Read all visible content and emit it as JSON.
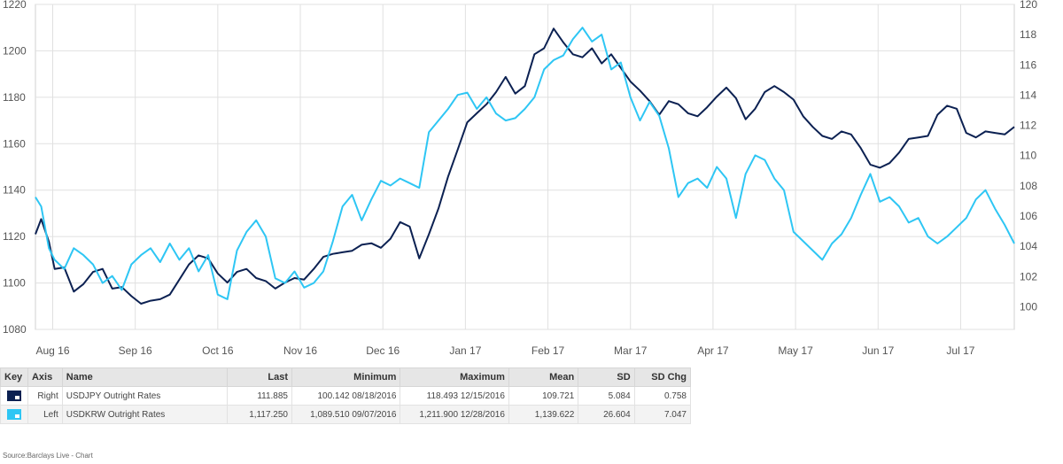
{
  "chart_data": {
    "type": "line",
    "title": "",
    "left_axis": {
      "min": 1080,
      "max": 1220,
      "ticks": [
        1080,
        1100,
        1120,
        1140,
        1160,
        1180,
        1200,
        1220
      ]
    },
    "right_axis": {
      "min": 98.5,
      "max": 120,
      "ticks": [
        100,
        102,
        104,
        106,
        108,
        110,
        112,
        114,
        116,
        118,
        120
      ]
    },
    "x_labels": [
      "Aug 16",
      "Sep 16",
      "Oct 16",
      "Nov 16",
      "Dec 16",
      "Jan 17",
      "Feb 17",
      "Mar 17",
      "Apr 17",
      "May 17",
      "Jun 17",
      "Jul 17"
    ],
    "x_range": [
      0,
      51
    ],
    "grid": true,
    "series": [
      {
        "name": "USDJPY Outright Rates",
        "axis": "right",
        "color": "#0c2152",
        "points": [
          [
            0,
            104.8
          ],
          [
            0.3,
            105.8
          ],
          [
            0.7,
            104.3
          ],
          [
            1,
            102.5
          ],
          [
            1.5,
            102.6
          ],
          [
            2,
            101
          ],
          [
            2.5,
            101.5
          ],
          [
            3,
            102.3
          ],
          [
            3.5,
            102.5
          ],
          [
            4,
            101.2
          ],
          [
            4.5,
            101.3
          ],
          [
            5,
            100.7
          ],
          [
            5.5,
            100.2
          ],
          [
            6,
            100.4
          ],
          [
            6.5,
            100.5
          ],
          [
            7,
            100.8
          ],
          [
            7.5,
            101.8
          ],
          [
            8,
            102.8
          ],
          [
            8.5,
            103.4
          ],
          [
            9,
            103.2
          ],
          [
            9.5,
            102.2
          ],
          [
            10,
            101.6
          ],
          [
            10.5,
            102.3
          ],
          [
            11,
            102.5
          ],
          [
            11.5,
            101.9
          ],
          [
            12,
            101.7
          ],
          [
            12.5,
            101.2
          ],
          [
            13,
            101.6
          ],
          [
            13.5,
            101.9
          ],
          [
            14,
            101.8
          ],
          [
            14.5,
            102.5
          ],
          [
            15,
            103.3
          ],
          [
            15.5,
            103.5
          ],
          [
            16,
            103.6
          ],
          [
            16.5,
            103.7
          ],
          [
            17,
            104.1
          ],
          [
            17.5,
            104.2
          ],
          [
            18,
            103.9
          ],
          [
            18.5,
            104.5
          ],
          [
            19,
            105.6
          ],
          [
            19.5,
            105.3
          ],
          [
            20,
            103.2
          ],
          [
            20.5,
            104.8
          ],
          [
            21,
            106.5
          ],
          [
            21.5,
            108.6
          ],
          [
            22,
            110.4
          ],
          [
            22.5,
            112.2
          ],
          [
            23,
            112.8
          ],
          [
            23.5,
            113.4
          ],
          [
            24,
            114.2
          ],
          [
            24.5,
            115.2
          ],
          [
            25,
            114.1
          ],
          [
            25.5,
            114.6
          ],
          [
            26,
            116.7
          ],
          [
            26.5,
            117.1
          ],
          [
            27,
            118.4
          ],
          [
            27.5,
            117.5
          ],
          [
            28,
            116.7
          ],
          [
            28.5,
            116.5
          ],
          [
            29,
            117.1
          ],
          [
            29.5,
            116.1
          ],
          [
            30,
            116.7
          ],
          [
            30.5,
            115.8
          ],
          [
            31,
            114.9
          ],
          [
            31.5,
            114.3
          ],
          [
            32,
            113.6
          ],
          [
            32.5,
            112.7
          ],
          [
            33,
            113.6
          ],
          [
            33.5,
            113.4
          ],
          [
            34,
            112.8
          ],
          [
            34.5,
            112.6
          ],
          [
            35,
            113.2
          ],
          [
            35.5,
            113.9
          ],
          [
            36,
            114.5
          ],
          [
            36.5,
            113.8
          ],
          [
            37,
            112.4
          ],
          [
            37.5,
            113.1
          ],
          [
            38,
            114.2
          ],
          [
            38.5,
            114.6
          ],
          [
            39,
            114.2
          ],
          [
            39.5,
            113.7
          ],
          [
            40,
            112.6
          ],
          [
            40.5,
            111.9
          ],
          [
            41,
            111.3
          ],
          [
            41.5,
            111.1
          ],
          [
            42,
            111.6
          ],
          [
            42.5,
            111.4
          ],
          [
            43,
            110.5
          ],
          [
            43.5,
            109.4
          ],
          [
            44,
            109.2
          ],
          [
            44.5,
            109.5
          ],
          [
            45,
            110.2
          ],
          [
            45.5,
            111.1
          ],
          [
            46,
            111.2
          ],
          [
            46.5,
            111.3
          ],
          [
            47,
            112.7
          ],
          [
            47.5,
            113.3
          ],
          [
            48,
            113.1
          ],
          [
            48.5,
            111.5
          ],
          [
            49,
            111.2
          ],
          [
            49.5,
            111.6
          ],
          [
            50,
            111.5
          ],
          [
            50.5,
            111.4
          ],
          [
            51,
            111.9
          ]
        ]
      },
      {
        "name": "USDKRW Outright Rates",
        "axis": "left",
        "color": "#2ec6f4",
        "points": [
          [
            0,
            1137
          ],
          [
            0.3,
            1133
          ],
          [
            0.7,
            1115
          ],
          [
            1,
            1110
          ],
          [
            1.5,
            1106
          ],
          [
            2,
            1115
          ],
          [
            2.5,
            1112
          ],
          [
            3,
            1108
          ],
          [
            3.5,
            1100
          ],
          [
            4,
            1103
          ],
          [
            4.5,
            1097
          ],
          [
            5,
            1108
          ],
          [
            5.5,
            1112
          ],
          [
            6,
            1115
          ],
          [
            6.5,
            1109
          ],
          [
            7,
            1117
          ],
          [
            7.5,
            1110
          ],
          [
            8,
            1115
          ],
          [
            8.5,
            1105
          ],
          [
            9,
            1112
          ],
          [
            9.5,
            1095
          ],
          [
            10,
            1093
          ],
          [
            10.5,
            1114
          ],
          [
            11,
            1122
          ],
          [
            11.5,
            1127
          ],
          [
            12,
            1120
          ],
          [
            12.5,
            1102
          ],
          [
            13,
            1100
          ],
          [
            13.5,
            1105
          ],
          [
            14,
            1098
          ],
          [
            14.5,
            1100
          ],
          [
            15,
            1105
          ],
          [
            15.5,
            1118
          ],
          [
            16,
            1133
          ],
          [
            16.5,
            1138
          ],
          [
            17,
            1127
          ],
          [
            17.5,
            1136
          ],
          [
            18,
            1144
          ],
          [
            18.5,
            1142
          ],
          [
            19,
            1145
          ],
          [
            19.5,
            1143
          ],
          [
            20,
            1141
          ],
          [
            20.5,
            1165
          ],
          [
            21,
            1170
          ],
          [
            21.5,
            1175
          ],
          [
            22,
            1181
          ],
          [
            22.5,
            1182
          ],
          [
            23,
            1175
          ],
          [
            23.5,
            1180
          ],
          [
            24,
            1173
          ],
          [
            24.5,
            1170
          ],
          [
            25,
            1171
          ],
          [
            25.5,
            1175
          ],
          [
            26,
            1180
          ],
          [
            26.5,
            1192
          ],
          [
            27,
            1196
          ],
          [
            27.5,
            1198
          ],
          [
            28,
            1205
          ],
          [
            28.5,
            1210
          ],
          [
            29,
            1204
          ],
          [
            29.5,
            1207
          ],
          [
            30,
            1192
          ],
          [
            30.5,
            1195
          ],
          [
            31,
            1180
          ],
          [
            31.5,
            1170
          ],
          [
            32,
            1178
          ],
          [
            32.5,
            1172
          ],
          [
            33,
            1158
          ],
          [
            33.5,
            1137
          ],
          [
            34,
            1143
          ],
          [
            34.5,
            1145
          ],
          [
            35,
            1141
          ],
          [
            35.5,
            1150
          ],
          [
            36,
            1145
          ],
          [
            36.5,
            1128
          ],
          [
            37,
            1147
          ],
          [
            37.5,
            1155
          ],
          [
            38,
            1153
          ],
          [
            38.5,
            1145
          ],
          [
            39,
            1140
          ],
          [
            39.5,
            1122
          ],
          [
            40,
            1118
          ],
          [
            40.5,
            1114
          ],
          [
            41,
            1110
          ],
          [
            41.5,
            1117
          ],
          [
            42,
            1121
          ],
          [
            42.5,
            1128
          ],
          [
            43,
            1138
          ],
          [
            43.5,
            1147
          ],
          [
            44,
            1135
          ],
          [
            44.5,
            1137
          ],
          [
            45,
            1133
          ],
          [
            45.5,
            1126
          ],
          [
            46,
            1128
          ],
          [
            46.5,
            1120
          ],
          [
            47,
            1117
          ],
          [
            47.5,
            1120
          ],
          [
            48,
            1124
          ],
          [
            48.5,
            1128
          ],
          [
            49,
            1136
          ],
          [
            49.5,
            1140
          ],
          [
            50,
            1132
          ],
          [
            50.5,
            1125
          ],
          [
            51,
            1117
          ]
        ]
      }
    ]
  },
  "legend": {
    "headers": {
      "key": "Key",
      "axis": "Axis",
      "name": "Name",
      "last": "Last",
      "minimum": "Minimum",
      "maximum": "Maximum",
      "mean": "Mean",
      "sd": "SD",
      "sd_chg": "SD Chg"
    },
    "rows": [
      {
        "color": "#0c2152",
        "axis": "Right",
        "name": "USDJPY Outright Rates",
        "last": "111.885",
        "minimum": "100.142 08/18/2016",
        "maximum": "118.493 12/15/2016",
        "mean": "109.721",
        "sd": "5.084",
        "sd_chg": "0.758"
      },
      {
        "color": "#2ec6f4",
        "axis": "Left",
        "name": "USDKRW Outright Rates",
        "last": "1,117.250",
        "minimum": "1,089.510 09/07/2016",
        "maximum": "1,211.900 12/28/2016",
        "mean": "1,139.622",
        "sd": "26.604",
        "sd_chg": "7.047"
      }
    ]
  },
  "source": "Source:Barclays Live - Chart"
}
